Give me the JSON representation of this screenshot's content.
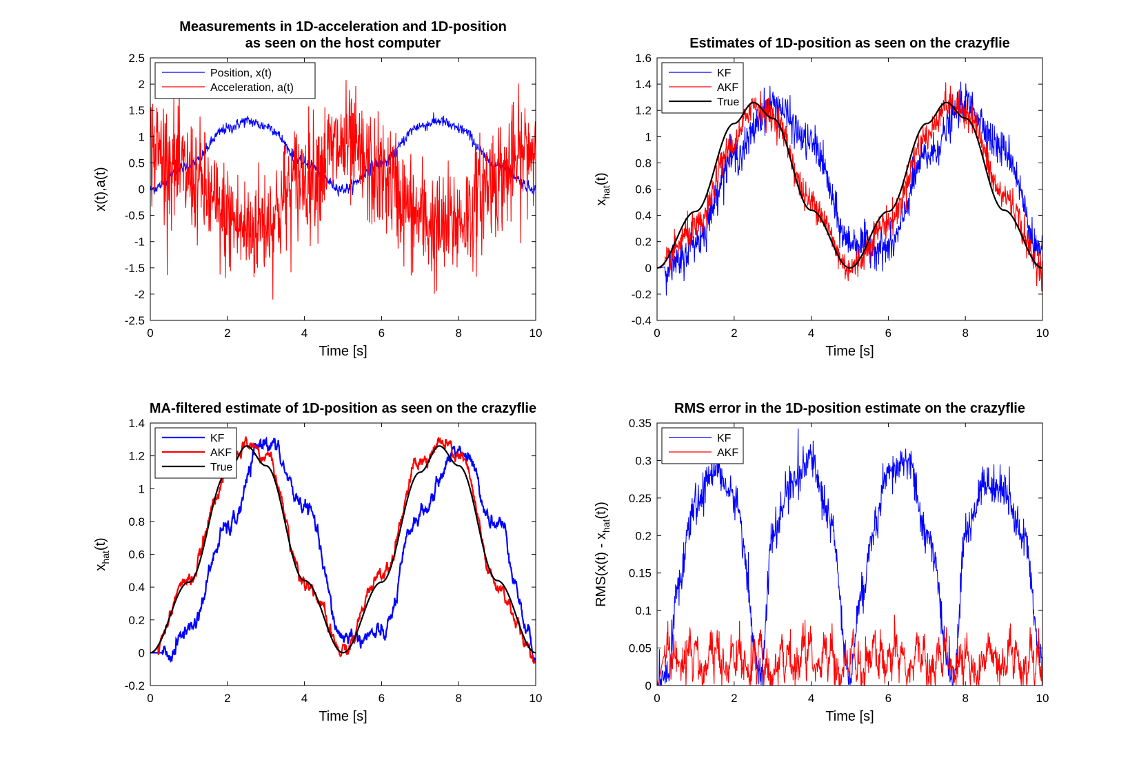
{
  "colors": {
    "kf": "#0000ff",
    "akf": "#ff0000",
    "true": "#000000",
    "axis": "#000000",
    "background": "#ffffff"
  },
  "chart_data": [
    {
      "id": "measurements",
      "type": "line",
      "title_lines": [
        "Measurements in 1D-acceleration and 1D-position",
        "as seen on the host computer"
      ],
      "xlabel": "Time [s]",
      "ylabel": {
        "parts": [
          "x(t),a(t)"
        ]
      },
      "xlim": [
        0,
        10
      ],
      "ylim": [
        -2.5,
        2.5
      ],
      "xticks": [
        0,
        2,
        4,
        6,
        8,
        10
      ],
      "yticks": [
        -2.5,
        -2,
        -1.5,
        -1,
        -0.5,
        0,
        0.5,
        1,
        1.5,
        2,
        2.5
      ],
      "ytick_labels": [
        "-2.5",
        "-2",
        "-1.5",
        "-1",
        "-0.5",
        "0",
        "0.5",
        "1",
        "1.5",
        "2",
        "2.5"
      ],
      "grid": false,
      "legend_position": "top-left",
      "series": [
        {
          "name": "Position, x(t)",
          "color": "#0000ff",
          "kind": "position_noisy",
          "t": [
            0,
            1,
            2,
            2.5,
            3,
            4,
            5,
            6,
            7,
            7.5,
            8,
            9,
            10
          ],
          "y": [
            0,
            0.45,
            1.15,
            1.3,
            1.2,
            0.5,
            0,
            0.5,
            1.2,
            1.3,
            1.15,
            0.45,
            0
          ]
        },
        {
          "name": "Acceleration, a(t)",
          "color": "#ff0000",
          "kind": "acceleration_noisy",
          "t": [
            0,
            1,
            2,
            2.5,
            3,
            4,
            5,
            6,
            7,
            7.5,
            8,
            9,
            10
          ],
          "y": [
            0.8,
            0.25,
            -0.55,
            -0.8,
            -0.6,
            0.25,
            0.8,
            0.25,
            -0.55,
            -0.8,
            -0.6,
            0.25,
            0.8
          ]
        }
      ]
    },
    {
      "id": "estimates",
      "type": "line",
      "title_lines": [
        "Estimates of 1D-position as seen on the crazyflie"
      ],
      "xlabel": "Time [s]",
      "ylabel": {
        "parts": [
          "x",
          "hat",
          "(t)"
        ]
      },
      "xlim": [
        0,
        10
      ],
      "ylim": [
        -0.4,
        1.6
      ],
      "xticks": [
        0,
        2,
        4,
        6,
        8,
        10
      ],
      "yticks": [
        -0.4,
        -0.2,
        0,
        0.2,
        0.4,
        0.6,
        0.8,
        1,
        1.2,
        1.4,
        1.6
      ],
      "ytick_labels": [
        "-0.4",
        "-0.2",
        "0",
        "0.2",
        "0.4",
        "0.6",
        "0.8",
        "1",
        "1.2",
        "1.4",
        "1.6"
      ],
      "grid": false,
      "legend_position": "top-left",
      "series": [
        {
          "name": "KF",
          "color": "#0000ff",
          "kind": "kf_noisy",
          "t": [
            0,
            0.5,
            1,
            2,
            3,
            4,
            5,
            6,
            7,
            8,
            9,
            10
          ],
          "y": [
            0,
            0.02,
            0.2,
            0.85,
            1.25,
            0.95,
            0.2,
            0.15,
            0.85,
            1.25,
            0.9,
            0.1
          ]
        },
        {
          "name": "AKF",
          "color": "#ff0000",
          "kind": "akf_noisy",
          "t": [
            0,
            1,
            2,
            2.5,
            3,
            4,
            5,
            6,
            7,
            7.5,
            8,
            9,
            10
          ],
          "y": [
            0,
            0.3,
            0.95,
            1.25,
            1.15,
            0.5,
            0,
            0.35,
            1.0,
            1.25,
            1.2,
            0.55,
            0
          ]
        },
        {
          "name": "True",
          "color": "#000000",
          "kind": "true_smooth",
          "t": [
            0,
            1,
            2,
            2.5,
            3,
            4,
            5,
            6,
            7,
            7.5,
            8,
            9,
            10
          ],
          "y": [
            0,
            0.43,
            1.1,
            1.26,
            1.14,
            0.44,
            0,
            0.43,
            1.1,
            1.26,
            1.14,
            0.44,
            0
          ]
        }
      ]
    },
    {
      "id": "ma_filtered",
      "type": "line",
      "title_lines": [
        "MA-filtered estimate of 1D-position as seen on the crazyflie"
      ],
      "xlabel": "Time [s]",
      "ylabel": {
        "parts": [
          "x",
          "hat",
          "(t)"
        ]
      },
      "xlim": [
        0,
        10
      ],
      "ylim": [
        -0.2,
        1.4
      ],
      "xticks": [
        0,
        2,
        4,
        6,
        8,
        10
      ],
      "yticks": [
        -0.2,
        0,
        0.2,
        0.4,
        0.6,
        0.8,
        1,
        1.2,
        1.4
      ],
      "ytick_labels": [
        "-0.2",
        "0",
        "0.2",
        "0.4",
        "0.6",
        "0.8",
        "1",
        "1.2",
        "1.4"
      ],
      "grid": false,
      "legend_position": "top-left",
      "series": [
        {
          "name": "KF",
          "color": "#0000ff",
          "kind": "kf_ma",
          "t": [
            0,
            0.5,
            1,
            2,
            3,
            4,
            5,
            6,
            7,
            8,
            9,
            10
          ],
          "y": [
            0,
            0,
            0.15,
            0.75,
            1.3,
            0.9,
            0.1,
            0.1,
            0.85,
            1.25,
            0.8,
            0.03
          ]
        },
        {
          "name": "AKF",
          "color": "#ff0000",
          "kind": "akf_ma",
          "t": [
            0,
            1,
            2,
            2.5,
            3,
            4,
            5,
            6,
            7,
            7.5,
            8,
            9,
            10
          ],
          "y": [
            0,
            0.45,
            1.1,
            1.27,
            1.2,
            0.45,
            0,
            0.5,
            1.15,
            1.27,
            1.2,
            0.4,
            -0.04
          ]
        },
        {
          "name": "True",
          "color": "#000000",
          "kind": "true_smooth",
          "t": [
            0,
            1,
            2,
            2.5,
            3,
            4,
            5,
            6,
            7,
            7.5,
            8,
            9,
            10
          ],
          "y": [
            0,
            0.43,
            1.1,
            1.26,
            1.14,
            0.44,
            0,
            0.43,
            1.1,
            1.26,
            1.14,
            0.44,
            0
          ]
        }
      ]
    },
    {
      "id": "rms_error",
      "type": "line",
      "title_lines": [
        "RMS error in the 1D-position estimate on the crazyflie"
      ],
      "xlabel": "Time [s]",
      "ylabel": {
        "parts": [
          "RMS(x(t) - x",
          "hat",
          "(t))"
        ]
      },
      "xlim": [
        0,
        10
      ],
      "ylim": [
        0,
        0.35
      ],
      "xticks": [
        0,
        2,
        4,
        6,
        8,
        10
      ],
      "yticks": [
        0,
        0.05,
        0.1,
        0.15,
        0.2,
        0.25,
        0.3,
        0.35
      ],
      "ytick_labels": [
        "0",
        "0.05",
        "0.1",
        "0.15",
        "0.2",
        "0.25",
        "0.3",
        "0.35"
      ],
      "grid": false,
      "legend_position": "top-left",
      "series": [
        {
          "name": "KF",
          "color": "#0000ff",
          "kind": "rms_kf",
          "t": [
            0,
            0.3,
            0.5,
            1,
            1.5,
            2,
            2.7,
            3,
            3.5,
            4,
            4.5,
            5,
            5.3,
            5.6,
            6,
            6.5,
            7,
            7.7,
            8,
            8.5,
            9,
            9.5,
            10
          ],
          "y": [
            0,
            0.02,
            0.12,
            0.24,
            0.29,
            0.25,
            0.02,
            0.2,
            0.27,
            0.3,
            0.22,
            0.01,
            0.12,
            0.2,
            0.28,
            0.3,
            0.2,
            0.01,
            0.2,
            0.27,
            0.26,
            0.2,
            0.03
          ]
        },
        {
          "name": "AKF",
          "color": "#ff0000",
          "kind": "rms_akf",
          "t": [
            0,
            0.2,
            1,
            2,
            3,
            4,
            5,
            6,
            7,
            8,
            9,
            10
          ],
          "y": [
            0,
            0.04,
            0.04,
            0.03,
            0.02,
            0.05,
            0.01,
            0.04,
            0.03,
            0.02,
            0.04,
            0.01
          ]
        }
      ]
    }
  ]
}
